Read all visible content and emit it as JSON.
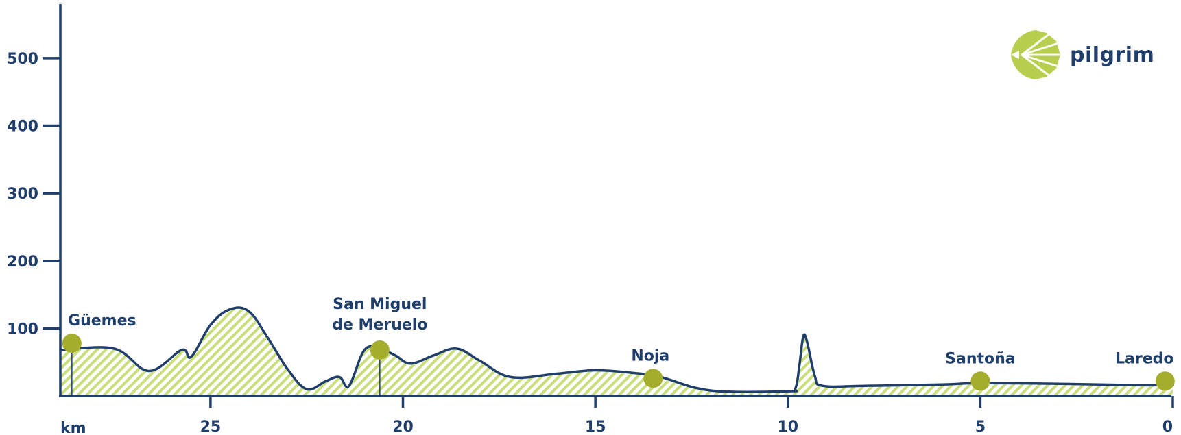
{
  "brand": {
    "name": "pilgrim",
    "icon": "scallop-shell-icon"
  },
  "colors": {
    "axis": "#1f3e6b",
    "line": "#1f3e6b",
    "fill": "#c7de7a",
    "marker": "#a5ad2c",
    "brand": "#b7cf4f"
  },
  "chart_data": {
    "type": "area",
    "title": "",
    "xlabel": "km",
    "ylabel": "",
    "xlim": [
      28.9,
      0
    ],
    "ylim": [
      0,
      580
    ],
    "x_ticks": [
      25,
      20,
      15,
      10,
      5,
      0
    ],
    "y_ticks": [
      100,
      200,
      300,
      400,
      500
    ],
    "grid": false,
    "series": [
      {
        "x": [
          28.9,
          27.5,
          26.6,
          25.75,
          25.5,
          25.0,
          24.5,
          24.0,
          23.5,
          23.0,
          22.5,
          22.0,
          21.65,
          21.4,
          21.0,
          20.6,
          20.2,
          19.8,
          19.2,
          18.6,
          18.0,
          17.2,
          16.0,
          15.0,
          14.0,
          13.3,
          12.0,
          10.0,
          9.8,
          9.7,
          9.6,
          9.5,
          9.3,
          9.1,
          8.0,
          6.0,
          5.0,
          3.0,
          1.0,
          0.0
        ],
        "y": [
          68,
          70,
          37,
          68,
          58,
          105,
          128,
          125,
          85,
          40,
          10,
          22,
          28,
          15,
          68,
          70,
          60,
          48,
          60,
          70,
          52,
          28,
          33,
          38,
          34,
          28,
          8,
          7,
          12,
          45,
          88,
          80,
          30,
          15,
          15,
          17,
          19,
          18,
          16,
          16
        ]
      }
    ],
    "towns": [
      {
        "name": "Güemes",
        "km": 28.6,
        "elevation": 78,
        "line": true
      },
      {
        "name": "San Miguel de Meruelo",
        "km": 20.6,
        "elevation": 68,
        "line": true
      },
      {
        "name": "Noja",
        "km": 13.5,
        "elevation": 26,
        "line": false
      },
      {
        "name": "Santoña",
        "km": 5.0,
        "elevation": 22,
        "line": false
      },
      {
        "name": "Laredo",
        "km": 0.2,
        "elevation": 22,
        "line": false
      }
    ]
  }
}
